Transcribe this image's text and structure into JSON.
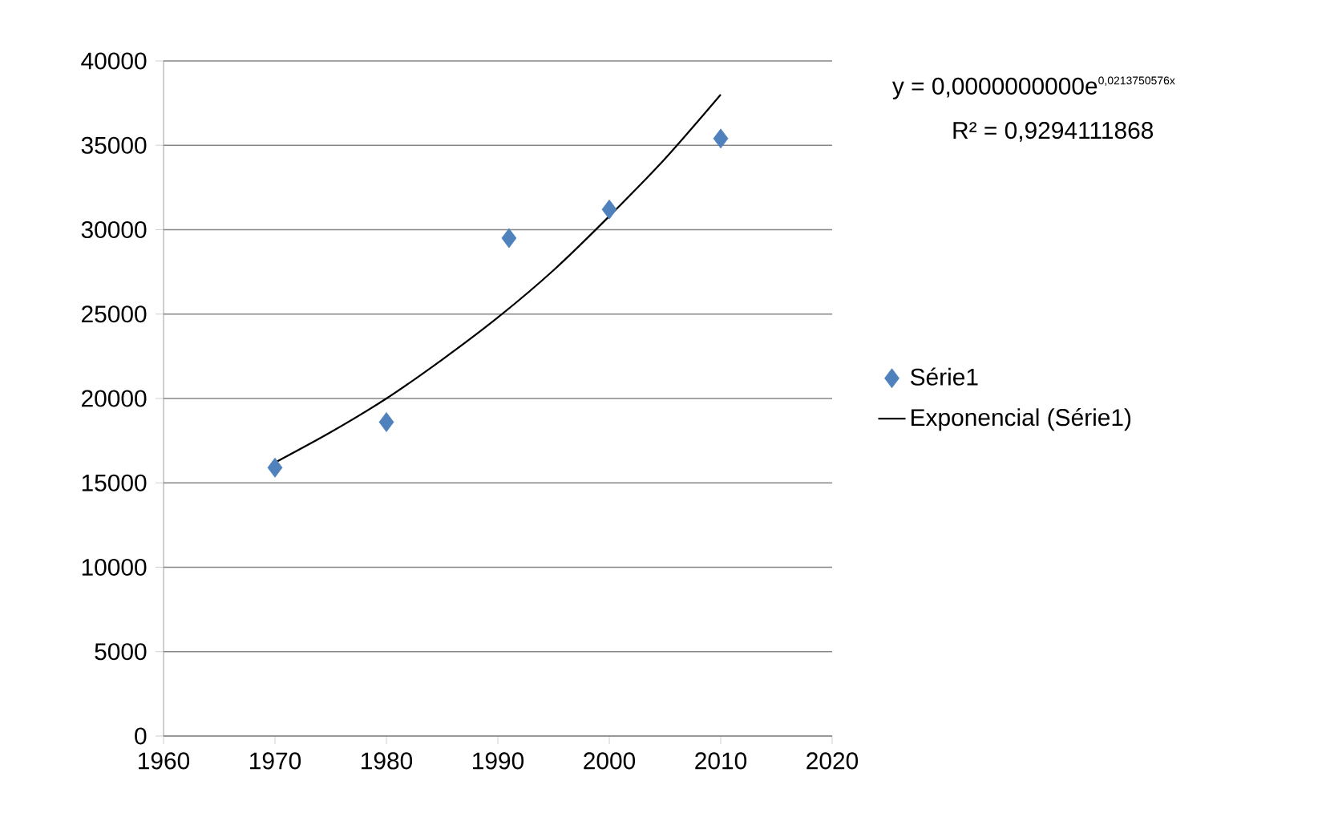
{
  "chart_data": {
    "type": "scatter",
    "xlim": [
      1960,
      2020
    ],
    "xticks": [
      1960,
      1970,
      1980,
      1990,
      2000,
      2010,
      2020
    ],
    "ylim": [
      0,
      40000
    ],
    "yticks": [
      0,
      5000,
      10000,
      15000,
      20000,
      25000,
      30000,
      35000,
      40000
    ],
    "grid": "y",
    "legend": "right",
    "annotations": [
      "\\mbox{y = 0,0000000000e}^{\\mbox{\\scriptsize 0,0213750576x}}",
      "R² = 0,9294111868"
    ],
    "series": [
      {
        "name": "Série1",
        "color": "#4f81bd",
        "marker": "diamond",
        "x": [
          1970,
          1980,
          1991,
          2000,
          2010
        ],
        "values": [
          15900,
          18600,
          29500,
          31200,
          35400
        ]
      },
      {
        "name": "Exponencial (Série1)",
        "type": "line",
        "color": "#000000",
        "marker": "none",
        "line_style": "solid",
        "x": [
          1970,
          1975,
          1980,
          1985,
          1990,
          1995,
          2000,
          2005,
          2010
        ],
        "values": [
          16200,
          18000,
          20000,
          22300,
          24800,
          27600,
          30800,
          34200,
          38000
        ]
      }
    ]
  }
}
